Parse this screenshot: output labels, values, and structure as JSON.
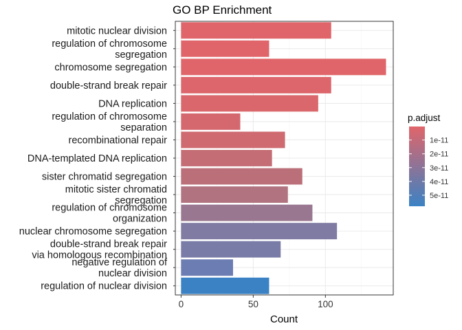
{
  "chart_data": {
    "type": "bar",
    "orientation": "horizontal",
    "title": "GO BP Enrichment",
    "xlabel": "Count",
    "ylabel": "",
    "xlim": [
      -4,
      147
    ],
    "xticks": [
      0,
      50,
      100
    ],
    "grid": true,
    "categories": [
      [
        "mitotic nuclear division"
      ],
      [
        "regulation of chromosome",
        "segregation"
      ],
      [
        "chromosome segregation"
      ],
      [
        "double-strand break repair"
      ],
      [
        "DNA replication"
      ],
      [
        "regulation of chromosome",
        "separation"
      ],
      [
        "recombinational repair"
      ],
      [
        "DNA-templated DNA replication"
      ],
      [
        "sister chromatid segregation"
      ],
      [
        "mitotic sister chromatid",
        "segregation"
      ],
      [
        "regulation of chromosome",
        "organization"
      ],
      [
        "nuclear chromosome segregation"
      ],
      [
        "double-strand break repair",
        "via homologous recombination"
      ],
      [
        "negative regulation of",
        "nuclear division"
      ],
      [
        "regulation of nuclear division"
      ]
    ],
    "values": [
      104,
      61,
      142,
      104,
      95,
      41,
      72,
      63,
      84,
      74,
      91,
      108,
      69,
      36,
      61
    ],
    "colors": [
      "#e0656a",
      "#e0656a",
      "#e0656a",
      "#dc666b",
      "#d9676c",
      "#d5686e",
      "#ce6a70",
      "#c46d75",
      "#bb7079",
      "#b0737f",
      "#9a7790",
      "#7f7ba2",
      "#797ca7",
      "#6c7db3",
      "#3b82c4"
    ],
    "legend": {
      "title": "p.adjust",
      "position": "right",
      "tick_labels": [
        "1e-11",
        "2e-11",
        "3e-11",
        "4e-11",
        "5e-11"
      ],
      "tick_values": [
        1e-11,
        2e-11,
        3e-11,
        4e-11,
        5e-11
      ],
      "range": [
        2e-13,
        5.8e-11
      ],
      "color_low": "#e0656a",
      "color_high": "#3b82c4"
    }
  }
}
